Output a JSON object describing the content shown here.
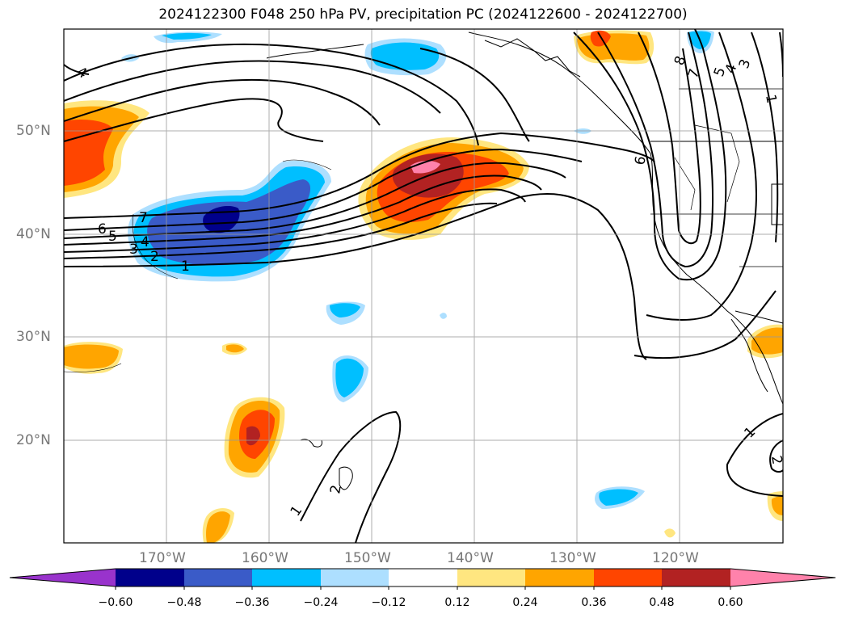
{
  "title": "2024122300 F048 250 hPa PV, precipitation PC (2024122600 - 2024122700)",
  "latitude_labels": [
    "50°N",
    "40°N",
    "30°N",
    "20°N"
  ],
  "longitude_labels": [
    "170°W",
    "160°W",
    "150°W",
    "140°W",
    "130°W",
    "120°W"
  ],
  "pv_contour_labels": [
    "7",
    "6",
    "5",
    "4",
    "3",
    "2",
    "1",
    "4",
    "1",
    "2",
    "8",
    "7",
    "5",
    "4",
    "3",
    "1",
    "6",
    "1",
    "2"
  ],
  "colorbar": {
    "ticks": [
      "−0.60",
      "−0.48",
      "−0.36",
      "−0.24",
      "−0.12",
      "0.12",
      "0.24",
      "0.36",
      "0.48",
      "0.60"
    ],
    "colors": [
      "#9933cc",
      "#00008b",
      "#3a5bc8",
      "#00bfff",
      "#addfff",
      "#ffffff",
      "#ffe680",
      "#ffa500",
      "#ff4500",
      "#b22222",
      "#ff82ab"
    ]
  }
}
